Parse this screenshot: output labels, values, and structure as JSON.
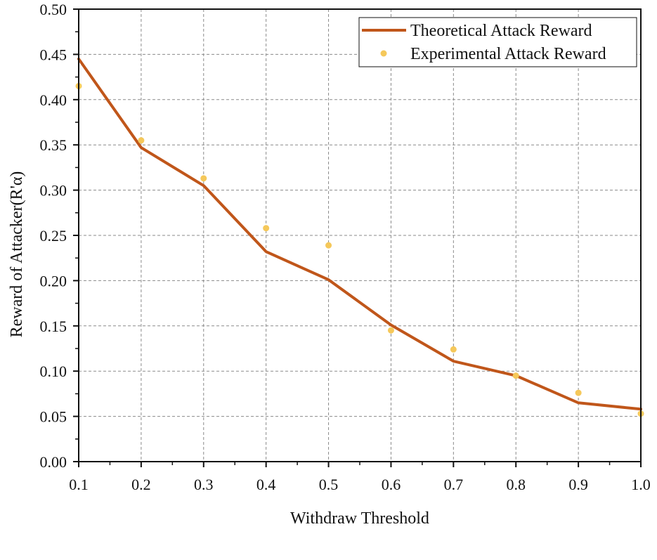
{
  "chart_data": {
    "type": "line",
    "title": "",
    "xlabel": "Withdraw Threshold",
    "ylabel": "Reward of Attacker(R'α)",
    "xlim": [
      0.1,
      1.0
    ],
    "ylim": [
      0.0,
      0.5
    ],
    "x_ticks": [
      0.1,
      0.2,
      0.3,
      0.4,
      0.5,
      0.6,
      0.7,
      0.8,
      0.9,
      1.0
    ],
    "x_tick_labels": [
      "0.1",
      "0.2",
      "0.3",
      "0.4",
      "0.5",
      "0.6",
      "0.7",
      "0.8",
      "0.9",
      "1.0"
    ],
    "y_ticks": [
      0.0,
      0.05,
      0.1,
      0.15,
      0.2,
      0.25,
      0.3,
      0.35,
      0.4,
      0.45,
      0.5
    ],
    "y_tick_labels": [
      "0.00",
      "0.05",
      "0.10",
      "0.15",
      "0.20",
      "0.25",
      "0.30",
      "0.35",
      "0.40",
      "0.45",
      "0.50"
    ],
    "grid": true,
    "legend_position": "top-right",
    "series": [
      {
        "name": "Theoretical Attack Reward",
        "kind": "line",
        "color": "#c0561a",
        "x": [
          0.1,
          0.2,
          0.3,
          0.4,
          0.5,
          0.6,
          0.7,
          0.8,
          0.9,
          1.0
        ],
        "y": [
          0.445,
          0.347,
          0.305,
          0.232,
          0.201,
          0.151,
          0.111,
          0.095,
          0.065,
          0.058
        ]
      },
      {
        "name": "Experimental Attack Reward",
        "kind": "scatter",
        "color": "#f5c85a",
        "x": [
          0.1,
          0.2,
          0.3,
          0.4,
          0.5,
          0.6,
          0.7,
          0.8,
          0.9,
          1.0
        ],
        "y": [
          0.415,
          0.355,
          0.313,
          0.258,
          0.239,
          0.145,
          0.124,
          0.095,
          0.076,
          0.053
        ]
      }
    ]
  }
}
